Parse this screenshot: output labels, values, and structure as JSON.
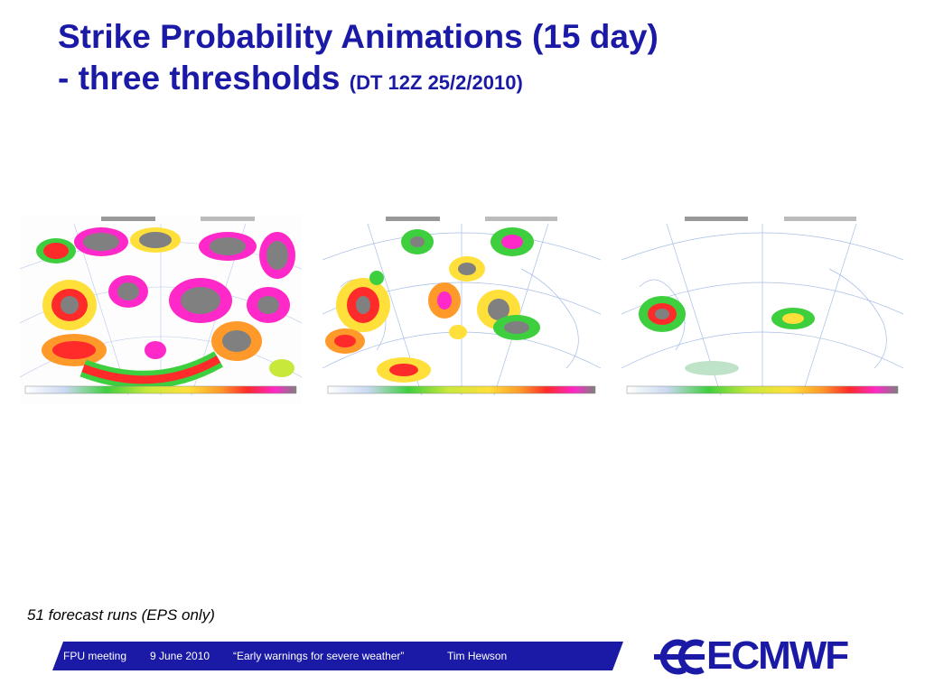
{
  "title": {
    "line1": "Strike Probability Animations (15 day)",
    "line2": "- three thresholds",
    "dt": "(DT 12Z 25/2/2010)"
  },
  "maps": [
    {
      "name": "threshold-map-1"
    },
    {
      "name": "threshold-map-2"
    },
    {
      "name": "threshold-map-3"
    }
  ],
  "caption": "51 forecast runs (EPS only)",
  "footer": {
    "meeting": "FPU meeting",
    "date": "9 June 2010",
    "talk": "“Early warnings for severe weather”",
    "author": "Tim Hewson",
    "bar_color": "#1a1aa6"
  },
  "logo": {
    "text": "ECMWF",
    "color": "#1a1aa6"
  },
  "colors": {
    "title": "#1a1aa6",
    "scale": [
      "#ffffff",
      "#c8d8f0",
      "#7cd66a",
      "#3ecf3e",
      "#c8e83c",
      "#ffe03a",
      "#ff9a2a",
      "#ff2a2a",
      "#ff28c8",
      "#808080"
    ]
  }
}
